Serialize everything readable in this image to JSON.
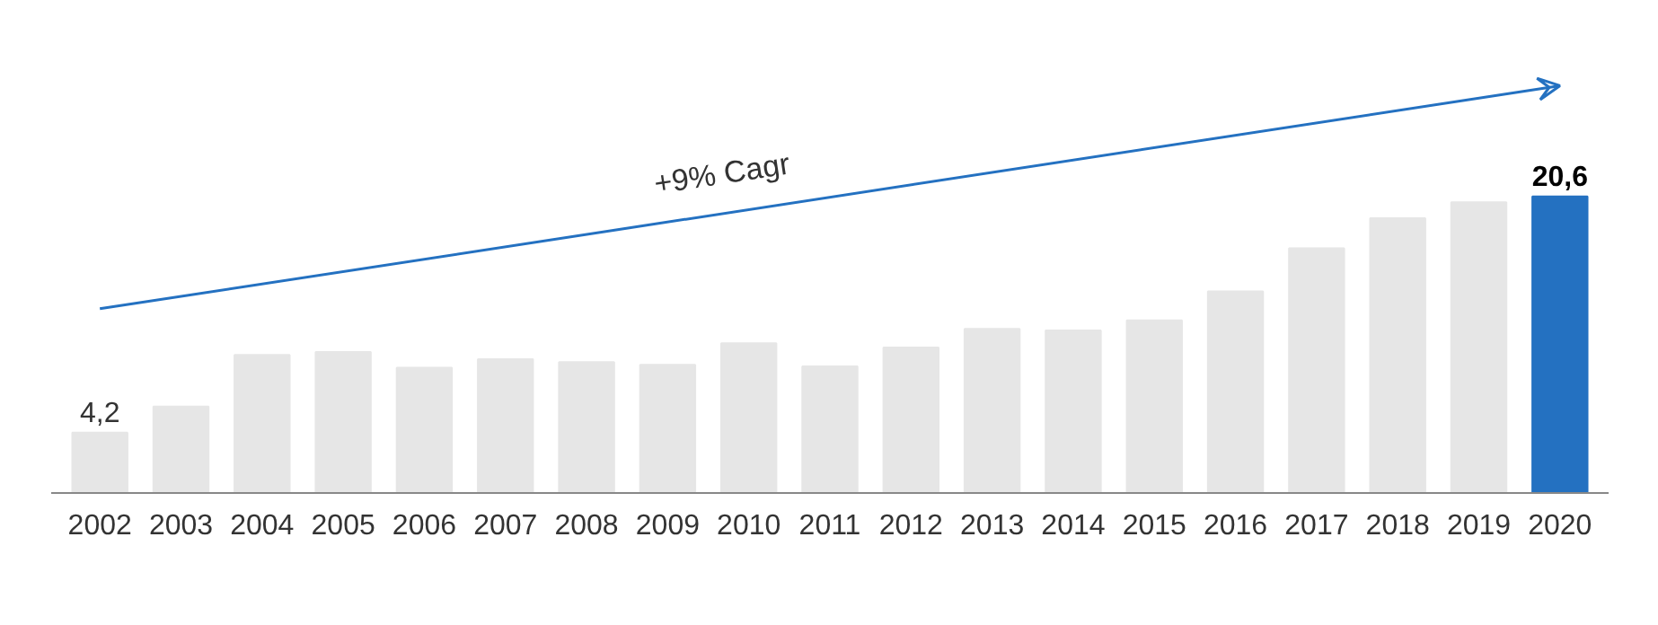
{
  "chart_data": {
    "type": "bar",
    "categories": [
      "2002",
      "2003",
      "2004",
      "2005",
      "2006",
      "2007",
      "2008",
      "2009",
      "2010",
      "2011",
      "2012",
      "2013",
      "2014",
      "2015",
      "2016",
      "2017",
      "2018",
      "2019",
      "2020"
    ],
    "series": [
      {
        "values": [
          4.2,
          6.0,
          9.6,
          9.8,
          8.7,
          9.3,
          9.1,
          8.9,
          10.4,
          8.8,
          10.1,
          11.4,
          11.3,
          12.0,
          14.0,
          17.0,
          19.1,
          20.2,
          20.6
        ],
        "colors": [
          "#e6e6e6",
          "#e6e6e6",
          "#e6e6e6",
          "#e6e6e6",
          "#e6e6e6",
          "#e6e6e6",
          "#e6e6e6",
          "#e6e6e6",
          "#e6e6e6",
          "#e6e6e6",
          "#e6e6e6",
          "#e6e6e6",
          "#e6e6e6",
          "#e6e6e6",
          "#e6e6e6",
          "#e6e6e6",
          "#e6e6e6",
          "#e6e6e6",
          "#2471c1"
        ],
        "value_labels": [
          "4,2",
          null,
          null,
          null,
          null,
          null,
          null,
          null,
          null,
          null,
          null,
          null,
          null,
          null,
          null,
          null,
          null,
          null,
          "20,6"
        ]
      },
      {
        "type": "line",
        "values": [
          12.8,
          null,
          null,
          null,
          null,
          null,
          null,
          null,
          null,
          null,
          null,
          null,
          null,
          null,
          null,
          null,
          null,
          null,
          28.3
        ],
        "color": "#2471c1"
      }
    ],
    "annotations": [
      "+9% Cagr"
    ],
    "grid": false
  }
}
